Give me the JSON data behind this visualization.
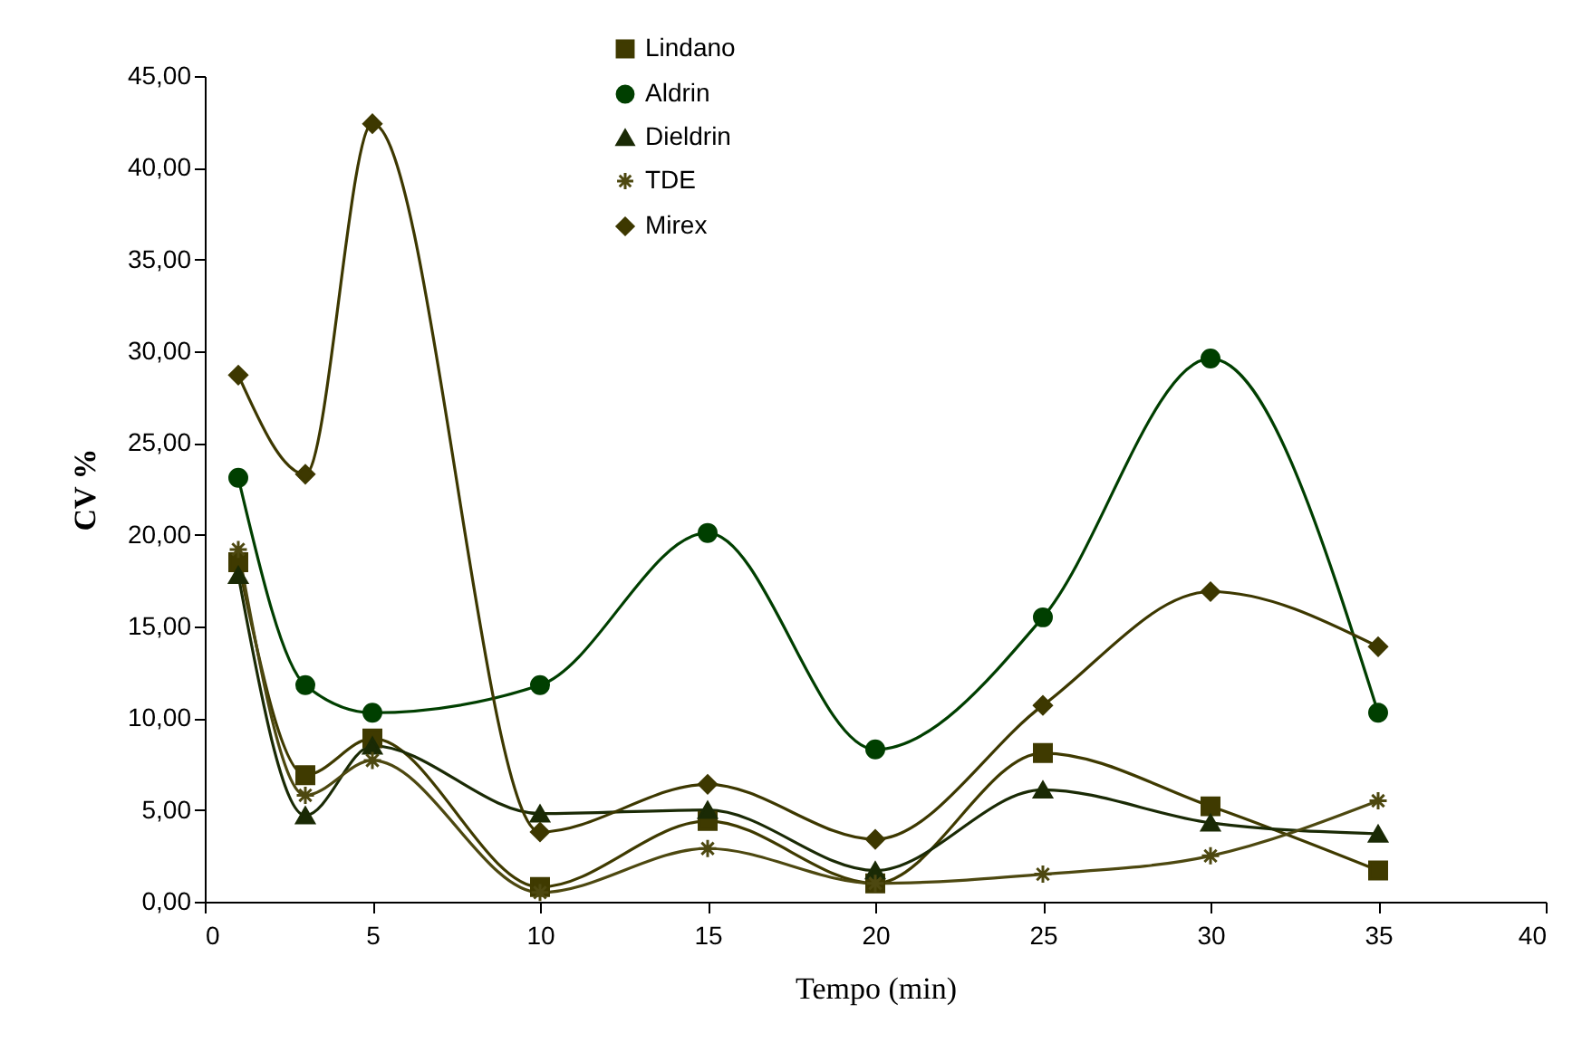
{
  "chart_data": {
    "type": "line",
    "xlabel": "Tempo (min)",
    "ylabel": "CV %",
    "x": [
      1,
      3,
      5,
      10,
      15,
      20,
      25,
      30,
      35
    ],
    "xlim": [
      0,
      40
    ],
    "xticks": [
      0,
      5,
      10,
      15,
      20,
      25,
      30,
      35,
      40
    ],
    "ylim": [
      0,
      45
    ],
    "yticks": [
      {
        "value": 0,
        "label": "0,00"
      },
      {
        "value": 5,
        "label": "5,00"
      },
      {
        "value": 10,
        "label": "10,00"
      },
      {
        "value": 15,
        "label": "15,00"
      },
      {
        "value": 20,
        "label": "20,00"
      },
      {
        "value": 25,
        "label": "25,00"
      },
      {
        "value": 30,
        "label": "30,00"
      },
      {
        "value": 35,
        "label": "35,00"
      },
      {
        "value": 40,
        "label": "40,00"
      },
      {
        "value": 45,
        "label": "45,00"
      }
    ],
    "grid": false,
    "legend": "top",
    "line_style": "solid",
    "series": [
      {
        "name": "Lindano",
        "color": "#3f3a00",
        "marker": "square",
        "values": [
          18.5,
          6.9,
          8.9,
          0.8,
          4.4,
          1.0,
          8.1,
          5.2,
          1.7
        ]
      },
      {
        "name": "Aldrin",
        "color": "#003f00",
        "marker": "circle",
        "values": [
          23.1,
          11.8,
          10.3,
          11.8,
          20.1,
          8.3,
          15.5,
          29.6,
          10.3
        ]
      },
      {
        "name": "Dieldrin",
        "color": "#1a2a05",
        "marker": "triangle",
        "values": [
          17.8,
          4.7,
          8.5,
          4.8,
          5.0,
          1.7,
          6.1,
          4.3,
          3.7
        ]
      },
      {
        "name": "TDE",
        "color": "#4d4810",
        "marker": "cross",
        "values": [
          19.2,
          5.8,
          7.7,
          0.5,
          2.9,
          1.0,
          1.5,
          2.5,
          5.5
        ]
      },
      {
        "name": "Mirex",
        "color": "#3d3800",
        "marker": "diamond",
        "values": [
          28.7,
          23.3,
          42.4,
          3.8,
          6.4,
          3.4,
          10.7,
          16.9,
          13.9
        ]
      }
    ]
  }
}
